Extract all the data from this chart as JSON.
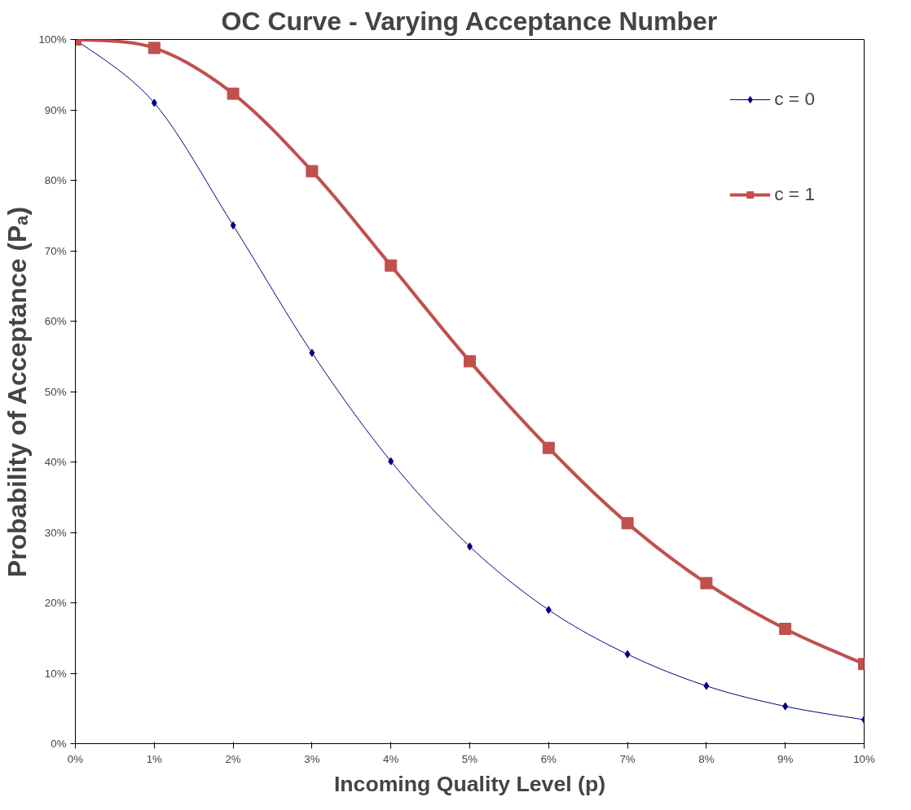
{
  "chart_data": {
    "type": "line",
    "title": "OC Curve - Varying Acceptance Number",
    "xlabel": "Incoming Quality Level (p)",
    "ylabel": "Probability of Acceptance (Pₐ)",
    "x": [
      0,
      1,
      2,
      3,
      4,
      5,
      6,
      7,
      8,
      9,
      10
    ],
    "series": [
      {
        "name": "c = 0",
        "color": "#000080",
        "values": [
          100,
          91,
          73.6,
          55.5,
          40.1,
          28,
          19,
          12.7,
          8.2,
          5.3,
          3.4
        ],
        "marker": "diamond"
      },
      {
        "name": "c = 1",
        "color": "#c0504d",
        "values": [
          100,
          98.8,
          92.3,
          81.3,
          67.9,
          54.3,
          42,
          31.3,
          22.8,
          16.3,
          11.3
        ],
        "marker": "square"
      }
    ],
    "xlim": [
      0,
      10
    ],
    "ylim": [
      0,
      100
    ],
    "xticks": [
      {
        "value": 0,
        "label": "0%"
      },
      {
        "value": 1,
        "label": "1%"
      },
      {
        "value": 2,
        "label": "2%"
      },
      {
        "value": 3,
        "label": "3%"
      },
      {
        "value": 4,
        "label": "4%"
      },
      {
        "value": 5,
        "label": "5%"
      },
      {
        "value": 6,
        "label": "6%"
      },
      {
        "value": 7,
        "label": "7%"
      },
      {
        "value": 8,
        "label": "8%"
      },
      {
        "value": 9,
        "label": "9%"
      },
      {
        "value": 10,
        "label": "10%"
      }
    ],
    "yticks": [
      {
        "value": 0,
        "label": "0%"
      },
      {
        "value": 10,
        "label": "10%"
      },
      {
        "value": 20,
        "label": "20%"
      },
      {
        "value": 30,
        "label": "30%"
      },
      {
        "value": 40,
        "label": "40%"
      },
      {
        "value": 50,
        "label": "50%"
      },
      {
        "value": 60,
        "label": "60%"
      },
      {
        "value": 70,
        "label": "70%"
      },
      {
        "value": 80,
        "label": "80%"
      },
      {
        "value": 90,
        "label": "90%"
      },
      {
        "value": 100,
        "label": "100%"
      }
    ],
    "grid": false,
    "legend": "top right",
    "line_style": "solid"
  }
}
